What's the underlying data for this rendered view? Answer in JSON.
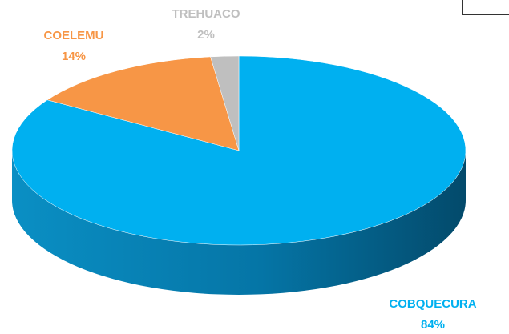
{
  "chart_data": {
    "type": "pie",
    "categories": [
      "COBQUECURA",
      "COELEMU",
      "TREHUACO"
    ],
    "values": [
      84,
      14,
      2
    ],
    "value_labels": [
      "84%",
      "14%",
      "2%"
    ],
    "colors": [
      "#00b0f0",
      "#f79646",
      "#bfbfbf"
    ]
  }
}
